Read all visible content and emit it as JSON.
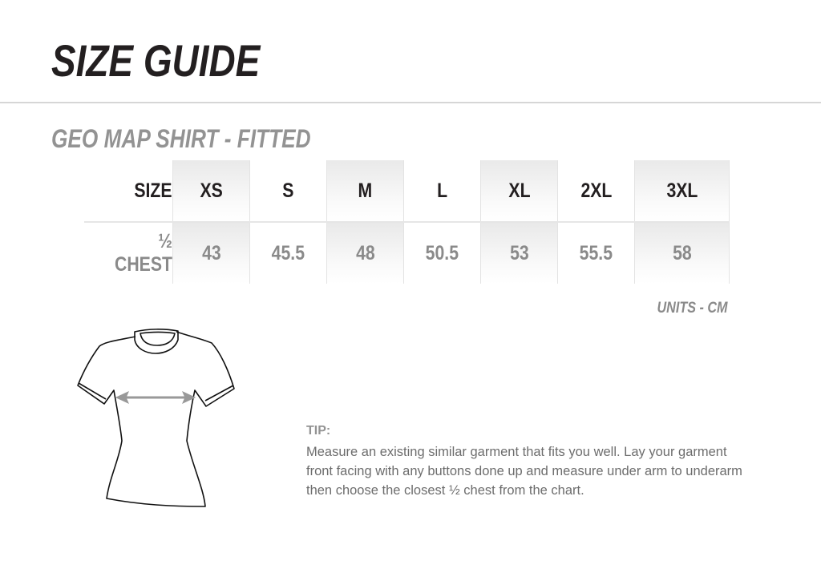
{
  "title": "SIZE GUIDE",
  "subtitle": "GEO MAP SHIRT - FITTED",
  "table": {
    "header_label": "SIZE",
    "sizes": [
      "XS",
      "S",
      "M",
      "L",
      "XL",
      "2XL",
      "3XL"
    ],
    "row_label": "½ CHEST",
    "chest": [
      "43",
      "45.5",
      "48",
      "50.5",
      "53",
      "55.5",
      "58"
    ]
  },
  "units": "UNITS - CM",
  "tip": {
    "heading": "TIP:",
    "text": "Measure an existing similar garment that fits you well. Lay your garment front facing with any buttons done up and measure under arm to underarm then choose the closest ½ chest from the chart."
  },
  "colors": {
    "title": "#231f20",
    "muted": "#939393",
    "arrow": "#999999"
  }
}
